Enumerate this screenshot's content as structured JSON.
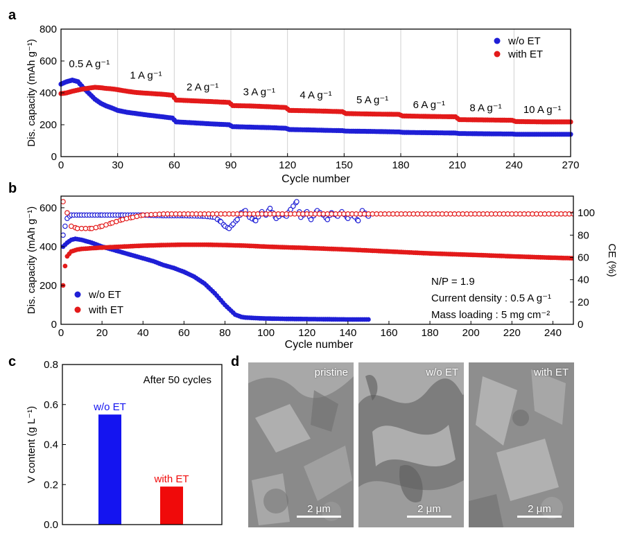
{
  "panel_labels": {
    "a": "a",
    "b": "b",
    "c": "c",
    "d": "d"
  },
  "colors": {
    "wo_et": "#1f1fd6",
    "with_et": "#e31a1a"
  },
  "chart_data": [
    {
      "id": "a",
      "type": "scatter",
      "title": "",
      "xlabel": "Cycle number",
      "ylabel": "Dis. capacity (mAh g⁻¹)",
      "xlim": [
        0,
        270
      ],
      "ylim": [
        0,
        800
      ],
      "xticks": [
        0,
        30,
        60,
        90,
        120,
        150,
        180,
        210,
        240,
        270
      ],
      "yticks": [
        0,
        200,
        400,
        600,
        800
      ],
      "grid": "vertical lines at rate changes",
      "legend": "top-right",
      "rate_labels": [
        {
          "text": "0.5 A g⁻¹",
          "x": 15,
          "y": 560
        },
        {
          "text": "1 A g⁻¹",
          "x": 45,
          "y": 490
        },
        {
          "text": "2 A g⁻¹",
          "x": 75,
          "y": 415
        },
        {
          "text": "3 A g⁻¹",
          "x": 105,
          "y": 385
        },
        {
          "text": "4 A g⁻¹",
          "x": 135,
          "y": 365
        },
        {
          "text": "5 A g⁻¹",
          "x": 165,
          "y": 335
        },
        {
          "text": "6 A g⁻¹",
          "x": 195,
          "y": 305
        },
        {
          "text": "8 A g⁻¹",
          "x": 225,
          "y": 285
        },
        {
          "text": "10 A g⁻¹",
          "x": 255,
          "y": 275
        }
      ],
      "series": [
        {
          "name": "w/o ET",
          "color": "#1f1fd6",
          "points": [
            [
              0,
              455
            ],
            [
              3,
              470
            ],
            [
              6,
              480
            ],
            [
              9,
              470
            ],
            [
              12,
              430
            ],
            [
              15,
              395
            ],
            [
              18,
              360
            ],
            [
              21,
              335
            ],
            [
              24,
              318
            ],
            [
              27,
              305
            ],
            [
              30,
              290
            ],
            [
              35,
              278
            ],
            [
              40,
              270
            ],
            [
              45,
              262
            ],
            [
              50,
              255
            ],
            [
              55,
              248
            ],
            [
              59,
              242
            ],
            [
              61,
              218
            ],
            [
              70,
              212
            ],
            [
              80,
              205
            ],
            [
              89,
              200
            ],
            [
              91,
              188
            ],
            [
              100,
              185
            ],
            [
              110,
              182
            ],
            [
              119,
              178
            ],
            [
              121,
              170
            ],
            [
              130,
              168
            ],
            [
              140,
              165
            ],
            [
              149,
              163
            ],
            [
              151,
              160
            ],
            [
              165,
              158
            ],
            [
              179,
              155
            ],
            [
              181,
              152
            ],
            [
              195,
              150
            ],
            [
              209,
              148
            ],
            [
              211,
              145
            ],
            [
              225,
              143
            ],
            [
              239,
              142
            ],
            [
              241,
              140
            ],
            [
              255,
              140
            ],
            [
              270,
              140
            ]
          ]
        },
        {
          "name": "with ET",
          "color": "#e31a1a",
          "points": [
            [
              0,
              395
            ],
            [
              3,
              400
            ],
            [
              6,
              410
            ],
            [
              9,
              418
            ],
            [
              12,
              425
            ],
            [
              15,
              430
            ],
            [
              18,
              435
            ],
            [
              21,
              432
            ],
            [
              24,
              428
            ],
            [
              27,
              425
            ],
            [
              30,
              420
            ],
            [
              35,
              410
            ],
            [
              40,
              402
            ],
            [
              45,
              398
            ],
            [
              50,
              394
            ],
            [
              55,
              390
            ],
            [
              59,
              385
            ],
            [
              61,
              355
            ],
            [
              70,
              350
            ],
            [
              80,
              345
            ],
            [
              89,
              340
            ],
            [
              91,
              320
            ],
            [
              100,
              318
            ],
            [
              110,
              313
            ],
            [
              119,
              308
            ],
            [
              121,
              290
            ],
            [
              130,
              288
            ],
            [
              140,
              285
            ],
            [
              149,
              282
            ],
            [
              151,
              270
            ],
            [
              165,
              267
            ],
            [
              179,
              265
            ],
            [
              181,
              255
            ],
            [
              195,
              252
            ],
            [
              209,
              250
            ],
            [
              211,
              232
            ],
            [
              225,
              230
            ],
            [
              239,
              228
            ],
            [
              241,
              220
            ],
            [
              255,
              218
            ],
            [
              270,
              218
            ]
          ]
        }
      ]
    },
    {
      "id": "b",
      "type": "scatter",
      "title": "",
      "xlabel": "Cycle number",
      "ylabel": "Dis. capacity (mAh g⁻¹)",
      "y2label": "CE (%)",
      "xlim": [
        0,
        250
      ],
      "ylim": [
        0,
        660
      ],
      "y2lim": [
        0,
        115
      ],
      "xticks": [
        0,
        20,
        40,
        60,
        80,
        100,
        120,
        140,
        160,
        180,
        200,
        220,
        240
      ],
      "yticks": [
        0,
        200,
        400,
        600
      ],
      "y2ticks": [
        0,
        20,
        40,
        60,
        80,
        100
      ],
      "legend": "bottom-left",
      "annotations": [
        "N/P = 1.9",
        "Current density : 0.5 A g⁻¹",
        "Mass loading : 5 mg cm⁻²"
      ],
      "series": [
        {
          "name": "w/o ET",
          "color": "#1f1fd6",
          "axis": "capacity",
          "points": [
            [
              1,
              400
            ],
            [
              3,
              420
            ],
            [
              5,
              435
            ],
            [
              7,
              440
            ],
            [
              10,
              435
            ],
            [
              15,
              420
            ],
            [
              20,
              400
            ],
            [
              25,
              385
            ],
            [
              30,
              370
            ],
            [
              35,
              355
            ],
            [
              40,
              340
            ],
            [
              45,
              325
            ],
            [
              50,
              305
            ],
            [
              55,
              290
            ],
            [
              60,
              270
            ],
            [
              65,
              245
            ],
            [
              70,
              210
            ],
            [
              75,
              160
            ],
            [
              80,
              100
            ],
            [
              85,
              50
            ],
            [
              88,
              38
            ],
            [
              90,
              35
            ],
            [
              95,
              32
            ],
            [
              100,
              30
            ],
            [
              110,
              28
            ],
            [
              120,
              27
            ],
            [
              130,
              26
            ],
            [
              140,
              25
            ],
            [
              150,
              25
            ]
          ]
        },
        {
          "name": "with ET",
          "color": "#e31a1a",
          "axis": "capacity",
          "points": [
            [
              1,
              200
            ],
            [
              2,
              300
            ],
            [
              3,
              350
            ],
            [
              5,
              375
            ],
            [
              8,
              385
            ],
            [
              10,
              388
            ],
            [
              15,
              392
            ],
            [
              20,
              395
            ],
            [
              30,
              400
            ],
            [
              40,
              405
            ],
            [
              50,
              408
            ],
            [
              60,
              410
            ],
            [
              70,
              410
            ],
            [
              80,
              408
            ],
            [
              90,
              405
            ],
            [
              100,
              400
            ],
            [
              120,
              393
            ],
            [
              140,
              385
            ],
            [
              160,
              375
            ],
            [
              180,
              365
            ],
            [
              200,
              358
            ],
            [
              220,
              350
            ],
            [
              240,
              343
            ],
            [
              250,
              340
            ]
          ]
        },
        {
          "name": "CE w/o ET",
          "color": "#1f1fd6",
          "axis": "CE",
          "points": [
            [
              1,
              80
            ],
            [
              2,
              88
            ],
            [
              3,
              95
            ],
            [
              5,
              98
            ],
            [
              10,
              98
            ],
            [
              20,
              98
            ],
            [
              30,
              98
            ],
            [
              40,
              98
            ],
            [
              50,
              97.5
            ],
            [
              60,
              97.5
            ],
            [
              70,
              97
            ],
            [
              75,
              96
            ],
            [
              78,
              92
            ],
            [
              80,
              88
            ],
            [
              82,
              86
            ],
            [
              84,
              90
            ],
            [
              86,
              94
            ],
            [
              88,
              100
            ],
            [
              90,
              102
            ],
            [
              92,
              96
            ],
            [
              95,
              93
            ],
            [
              98,
              101
            ],
            [
              100,
              98
            ],
            [
              102,
              104
            ],
            [
              105,
              95
            ],
            [
              108,
              99
            ],
            [
              110,
              97
            ],
            [
              112,
              103
            ],
            [
              115,
              110
            ],
            [
              117,
              96
            ],
            [
              120,
              101
            ],
            [
              122,
              94
            ],
            [
              125,
              102
            ],
            [
              128,
              98
            ],
            [
              130,
              94
            ],
            [
              132,
              100
            ],
            [
              135,
              97
            ],
            [
              137,
              101
            ],
            [
              140,
              95
            ],
            [
              142,
              99
            ],
            [
              145,
              93
            ],
            [
              147,
              102
            ],
            [
              150,
              97
            ]
          ]
        },
        {
          "name": "CE with ET",
          "color": "#e31a1a",
          "axis": "CE",
          "points": [
            [
              1,
              110
            ],
            [
              3,
              100
            ],
            [
              5,
              88
            ],
            [
              8,
              86
            ],
            [
              10,
              86
            ],
            [
              15,
              86
            ],
            [
              20,
              88
            ],
            [
              25,
              91
            ],
            [
              30,
              94
            ],
            [
              35,
              96
            ],
            [
              40,
              98
            ],
            [
              50,
              99
            ],
            [
              60,
              99
            ],
            [
              80,
              99
            ],
            [
              100,
              99
            ],
            [
              120,
              99
            ],
            [
              140,
              99
            ],
            [
              160,
              99
            ],
            [
              180,
              99
            ],
            [
              200,
              99
            ],
            [
              220,
              99
            ],
            [
              240,
              99
            ],
            [
              250,
              99
            ]
          ]
        }
      ]
    },
    {
      "id": "c",
      "type": "bar",
      "title": "",
      "annotation": "After 50 cycles",
      "xlabel": "",
      "ylabel": "V content (g L⁻¹)",
      "ylim": [
        0,
        0.8
      ],
      "yticks": [
        0,
        0.2,
        0.4,
        0.6,
        0.8
      ],
      "categories": [
        "w/o ET",
        "with ET"
      ],
      "values": [
        0.55,
        0.19
      ],
      "colors": [
        "#1414f0",
        "#f00a0a"
      ]
    }
  ],
  "legend_labels": {
    "wo": "w/o ET",
    "with": "with ET"
  },
  "panel_c_note": "After 50 cycles",
  "sem_images": [
    {
      "label": "pristine",
      "scale": "2 μm"
    },
    {
      "label": "w/o ET",
      "scale": "2 μm"
    },
    {
      "label": "with ET",
      "scale": "2 μm"
    }
  ]
}
